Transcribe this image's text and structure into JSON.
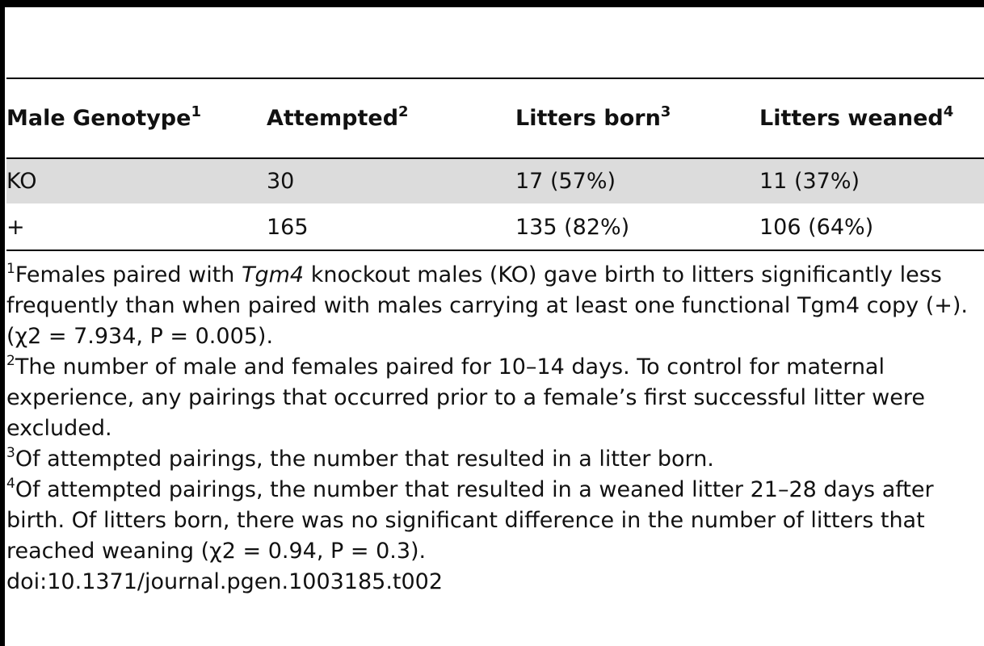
{
  "table": {
    "headers": [
      {
        "label": "Male Genotype",
        "note": "1"
      },
      {
        "label": "Attempted",
        "note": "2"
      },
      {
        "label": "Litters born",
        "note": "3"
      },
      {
        "label": "Litters weaned",
        "note": "4"
      }
    ],
    "rows": [
      [
        "KO",
        "30",
        "17 (57%)",
        "11 (37%)"
      ],
      [
        "+",
        "165",
        "135 (82%)",
        "106 (64%)"
      ]
    ]
  },
  "footnotes": {
    "n1": {
      "mark": "1",
      "pre": "Females paired with ",
      "italic": "Tgm4",
      "post": " knockout males (KO) gave birth to litters significantly less frequently than when paired with males carrying at least one functional Tgm4 copy (+). (χ2 = 7.934, P = 0.005)."
    },
    "n2": {
      "mark": "2",
      "text": "The number of male and females paired for 10–14 days. To control for maternal experience, any pairings that occurred prior to a female’s first successful litter were excluded."
    },
    "n3": {
      "mark": "3",
      "text": "Of attempted pairings, the number that resulted in a litter born."
    },
    "n4": {
      "mark": "4",
      "text": "Of attempted pairings, the number that resulted in a weaned litter 21–28 days after birth. Of litters born, there was no significant difference in the number of litters that reached weaning (χ2 = 0.94, P = 0.3)."
    }
  },
  "doi": "doi:10.1371/journal.pgen.1003185.t002"
}
